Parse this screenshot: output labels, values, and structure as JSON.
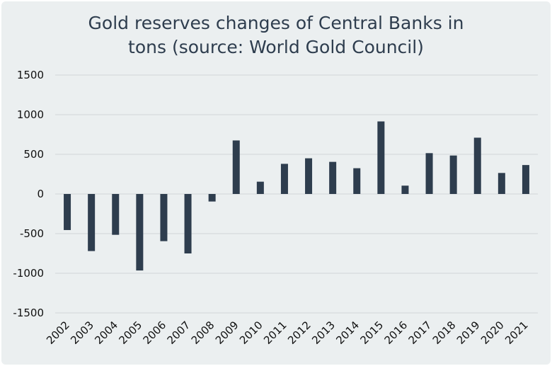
{
  "chart_data": {
    "type": "bar",
    "title": "Gold reserves changes of Central Banks in\ntons (source: World Gold Council)",
    "xlabel": "",
    "ylabel": "",
    "ylim": [
      -1500,
      1500
    ],
    "yticks": [
      1500,
      1000,
      500,
      0,
      -500,
      -1000,
      -1500
    ],
    "grid": true,
    "bar_color": "#2e3d4e",
    "categories": [
      "2002",
      "2003",
      "2004",
      "2005",
      "2006",
      "2007",
      "2008",
      "2009",
      "2010",
      "2011",
      "2012",
      "2013",
      "2014",
      "2015",
      "2016",
      "2017",
      "2018",
      "2019",
      "2020",
      "2021"
    ],
    "values": [
      -455,
      -720,
      -515,
      -965,
      -595,
      -750,
      -95,
      675,
      155,
      380,
      450,
      405,
      325,
      915,
      105,
      515,
      485,
      710,
      265,
      365
    ]
  }
}
